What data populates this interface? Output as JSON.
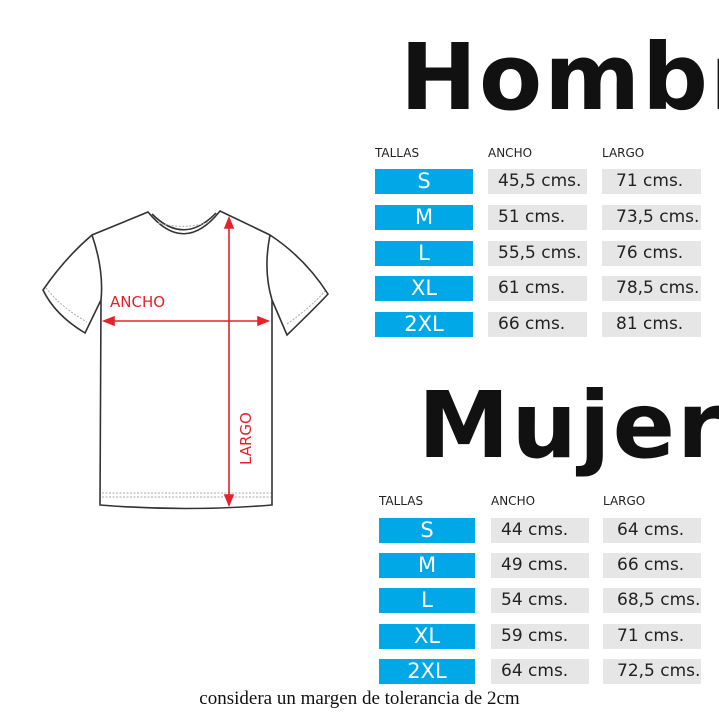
{
  "diagram": {
    "width_label": "ANCHO",
    "length_label": "LARGO",
    "arrow_color": "#e8202a"
  },
  "colors": {
    "size_cell": "#00a8e8",
    "value_cell": "#e6e6e6"
  },
  "hombre": {
    "title": "Hombre",
    "headers": [
      "TALLAS",
      "ANCHO",
      "LARGO"
    ],
    "rows": [
      {
        "size": "S",
        "ancho": "45,5 cms.",
        "largo": "71 cms."
      },
      {
        "size": "M",
        "ancho": "51 cms.",
        "largo": "73,5 cms."
      },
      {
        "size": "L",
        "ancho": "55,5 cms.",
        "largo": "76 cms."
      },
      {
        "size": "XL",
        "ancho": "61 cms.",
        "largo": "78,5 cms."
      },
      {
        "size": "2XL",
        "ancho": "66 cms.",
        "largo": "81 cms."
      }
    ]
  },
  "mujer": {
    "title": "Mujer",
    "headers": [
      "TALLAS",
      "ANCHO",
      "LARGO"
    ],
    "rows": [
      {
        "size": "S",
        "ancho": "44 cms.",
        "largo": "64 cms."
      },
      {
        "size": "M",
        "ancho": "49 cms.",
        "largo": "66 cms."
      },
      {
        "size": "L",
        "ancho": "54 cms.",
        "largo": "68,5 cms."
      },
      {
        "size": "XL",
        "ancho": "59 cms.",
        "largo": "71 cms."
      },
      {
        "size": "2XL",
        "ancho": "64 cms.",
        "largo": "72,5 cms."
      }
    ]
  },
  "footer": "considera un margen de tolerancia de 2cm"
}
